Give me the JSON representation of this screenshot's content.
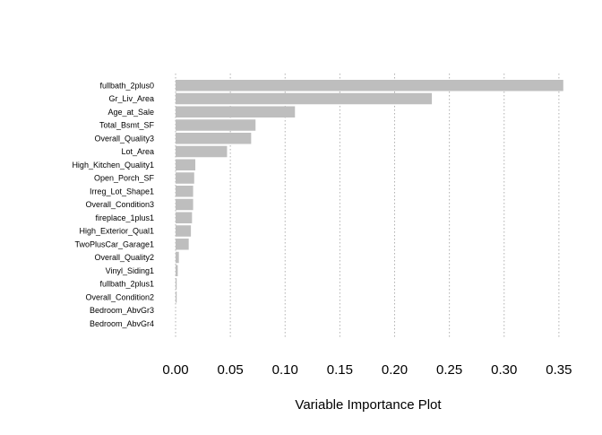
{
  "chart_data": {
    "type": "bar",
    "orientation": "horizontal",
    "title": "",
    "xlabel": "Variable Importance Plot",
    "ylabel": "",
    "xlim": [
      0,
      0.355
    ],
    "grid": true,
    "bar_color": "#bebebe",
    "x_ticks": [
      0.0,
      0.05,
      0.1,
      0.15,
      0.2,
      0.25,
      0.3,
      0.35
    ],
    "x_tick_labels": [
      "0.00",
      "0.05",
      "0.10",
      "0.15",
      "0.20",
      "0.25",
      "0.30",
      "0.35"
    ],
    "categories": [
      "fullbath_2plus0",
      "Gr_Liv_Area",
      "Age_at_Sale",
      "Total_Bsmt_SF",
      "Overall_Quality3",
      "Lot_Area",
      "High_Kitchen_Quality1",
      "Open_Porch_SF",
      "Irreg_Lot_Shape1",
      "Overall_Condition3",
      "fireplace_1plus1",
      "High_Exterior_Qual1",
      "TwoPlusCar_Garage1",
      "Overall_Quality2",
      "Vinyl_Siding1",
      "fullbath_2plus1",
      "Overall_Condition2",
      "Bedroom_AbvGr3",
      "Bedroom_AbvGr4"
    ],
    "values": [
      0.354,
      0.234,
      0.109,
      0.073,
      0.069,
      0.047,
      0.018,
      0.017,
      0.016,
      0.016,
      0.015,
      0.014,
      0.012,
      0.003,
      0.002,
      0.001,
      0.001,
      0.0,
      0.0
    ]
  }
}
